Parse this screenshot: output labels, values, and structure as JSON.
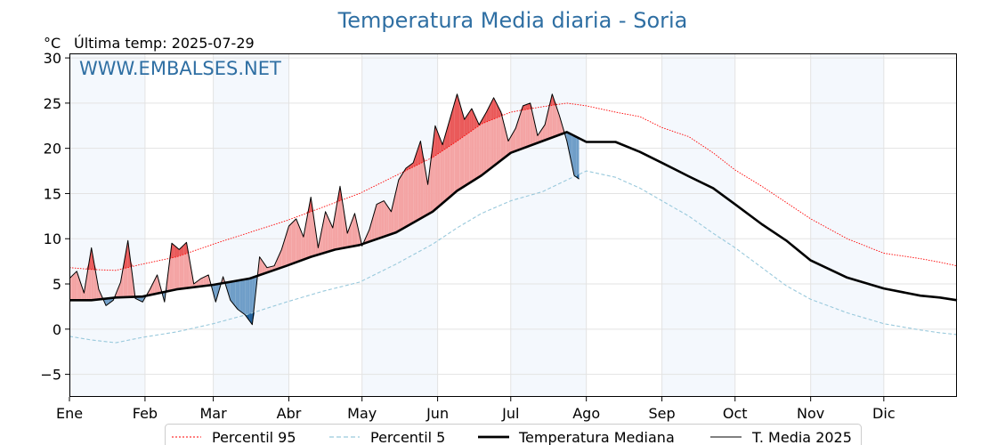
{
  "chart_data": {
    "type": "line",
    "title": "Temperatura Media diaria - Soria",
    "unit": "°C",
    "subtitle": "Última temp: 2025-07-29",
    "watermark": "WWW.EMBALSES.NET",
    "ylim": [
      -7.5,
      30.5
    ],
    "y_ticks": [
      30,
      25,
      20,
      15,
      10,
      5,
      0,
      -5
    ],
    "y_tick_labels": [
      "30",
      "25",
      "20",
      "15",
      "10",
      "5",
      "0",
      "−5"
    ],
    "x_months": [
      "Ene",
      "Feb",
      "Mar",
      "Abr",
      "May",
      "Jun",
      "Jul",
      "Ago",
      "Sep",
      "Oct",
      "Nov",
      "Dic"
    ],
    "month_start_day": [
      1,
      32,
      60,
      91,
      121,
      152,
      182,
      213,
      244,
      274,
      305,
      335
    ],
    "days_in_year": 365,
    "grid": true,
    "legend_position": "bottom",
    "colors": {
      "p95": "#ff0000",
      "p5": "#99c9dc",
      "median": "#000000",
      "y2025": "#000000",
      "above": "#f4a4a4",
      "above_strong": "#ea5a5a",
      "below": "#6f9ec8",
      "below_strong": "#1f5f9a",
      "band": "#dbe9f7",
      "title": "#2f6fa3"
    },
    "series": [
      {
        "name": "Percentil 95",
        "style": "dotted-red",
        "x": [
          1,
          10,
          20,
          31,
          45,
          60,
          75,
          90,
          105,
          120,
          135,
          150,
          160,
          170,
          182,
          195,
          205,
          213,
          225,
          235,
          244,
          255,
          265,
          274,
          285,
          295,
          305,
          320,
          335,
          350,
          358,
          365
        ],
        "values": [
          6.8,
          6.6,
          6.5,
          7.2,
          8.0,
          9.4,
          10.7,
          12.0,
          13.5,
          15.0,
          17.0,
          19.0,
          20.8,
          22.7,
          24.0,
          24.6,
          25.0,
          24.7,
          24.0,
          23.5,
          22.3,
          21.3,
          19.5,
          17.6,
          15.8,
          14.0,
          12.2,
          10.0,
          8.4,
          7.8,
          7.4,
          7.0
        ]
      },
      {
        "name": "Percentil 5",
        "style": "dashed-lightblue",
        "x": [
          1,
          10,
          20,
          31,
          45,
          60,
          75,
          90,
          105,
          120,
          135,
          150,
          160,
          170,
          182,
          195,
          205,
          213,
          225,
          235,
          244,
          255,
          265,
          274,
          285,
          295,
          305,
          320,
          335,
          350,
          358,
          365
        ],
        "values": [
          -0.8,
          -1.2,
          -1.5,
          -0.9,
          -0.3,
          0.6,
          1.7,
          3.0,
          4.2,
          5.2,
          7.2,
          9.4,
          11.2,
          12.8,
          14.2,
          15.2,
          16.5,
          17.5,
          16.8,
          15.6,
          14.2,
          12.5,
          10.6,
          9.0,
          6.8,
          4.8,
          3.3,
          1.8,
          0.6,
          -0.1,
          -0.4,
          -0.6
        ]
      },
      {
        "name": "Temperatura Mediana",
        "style": "thick-black",
        "x": [
          1,
          10,
          20,
          31,
          45,
          60,
          75,
          90,
          100,
          110,
          120,
          135,
          150,
          160,
          170,
          182,
          195,
          205,
          213,
          225,
          235,
          244,
          255,
          265,
          274,
          285,
          295,
          305,
          320,
          335,
          350,
          358,
          365
        ],
        "values": [
          3.2,
          3.2,
          3.5,
          3.6,
          4.4,
          4.9,
          5.6,
          7.0,
          8.0,
          8.8,
          9.3,
          10.7,
          13.0,
          15.3,
          17.0,
          19.5,
          20.8,
          21.8,
          20.7,
          20.7,
          19.6,
          18.4,
          16.9,
          15.6,
          13.8,
          11.6,
          9.8,
          7.6,
          5.7,
          4.5,
          3.7,
          3.5,
          3.2
        ]
      },
      {
        "name": "T. Media 2025",
        "style": "thin-black",
        "x": [
          1,
          4,
          7,
          10,
          13,
          16,
          19,
          22,
          25,
          28,
          31,
          34,
          37,
          40,
          43,
          46,
          49,
          52,
          55,
          58,
          61,
          64,
          67,
          70,
          73,
          76,
          79,
          82,
          85,
          88,
          91,
          94,
          97,
          100,
          103,
          106,
          109,
          112,
          115,
          118,
          121,
          124,
          127,
          130,
          133,
          136,
          139,
          142,
          145,
          148,
          151,
          154,
          157,
          160,
          163,
          166,
          169,
          172,
          175,
          178,
          181,
          184,
          187,
          190,
          193,
          196,
          199,
          202,
          205,
          208,
          210
        ],
        "values": [
          5.6,
          6.4,
          4.0,
          9.0,
          4.4,
          2.6,
          3.2,
          5.2,
          9.8,
          3.4,
          3.0,
          4.4,
          6.0,
          3.0,
          9.5,
          8.8,
          9.6,
          5.0,
          5.6,
          6.0,
          3.0,
          5.8,
          3.2,
          2.2,
          1.6,
          0.5,
          8.0,
          6.8,
          7.0,
          8.8,
          11.4,
          12.2,
          10.2,
          14.6,
          9.0,
          13.0,
          11.2,
          15.8,
          10.6,
          12.8,
          9.2,
          11.0,
          13.8,
          14.2,
          13.0,
          16.5,
          17.8,
          18.4,
          20.8,
          16.0,
          22.5,
          20.4,
          23.2,
          26.0,
          23.2,
          24.4,
          22.6,
          24.0,
          25.6,
          24.0,
          20.8,
          22.2,
          24.7,
          25.0,
          21.4,
          22.6,
          26.0,
          23.6,
          20.8,
          17.0,
          16.6
        ]
      }
    ]
  }
}
